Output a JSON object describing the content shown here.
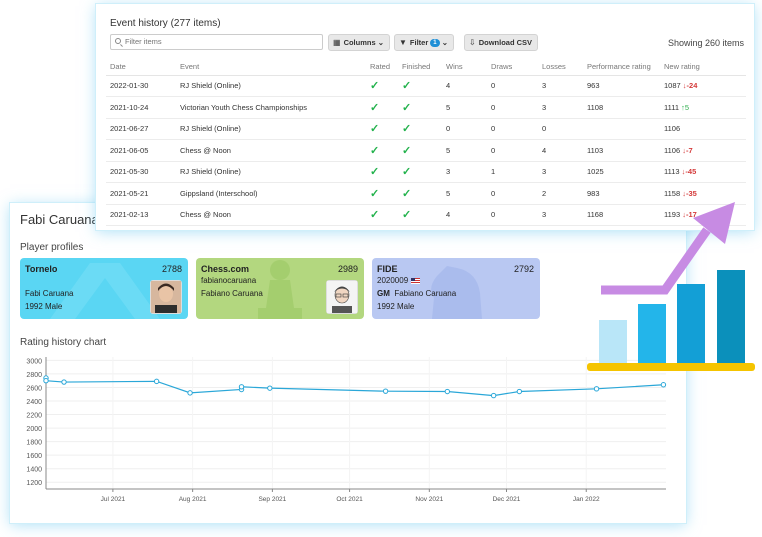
{
  "player_card": {
    "name": "Fabi Caruana",
    "profiles_title": "Player profiles",
    "chart_title": "Rating history chart",
    "profiles": [
      {
        "platform": "Tornelo",
        "rating": "2788",
        "line1": "Fabi Caruana",
        "line2": "1992 Male",
        "line3": ""
      },
      {
        "platform": "Chess.com",
        "rating": "2989",
        "line1": "fabianocaruana",
        "line2": "Fabiano Caruana",
        "line3": ""
      },
      {
        "platform": "FIDE",
        "rating": "2792",
        "line1": "2020009",
        "title": "GM",
        "line2": "Fabiano Caruana",
        "line3": "1992 Male"
      }
    ]
  },
  "events": {
    "title": "Event history (277 items)",
    "filter_placeholder": "Filter items",
    "columns_label": "Columns",
    "filter_label": "Filter",
    "filter_count": "1",
    "csv_label": "Download CSV",
    "showing": "Showing 260 items",
    "headers": [
      "Date",
      "Event",
      "Rated",
      "Finished",
      "Wins",
      "Draws",
      "Losses",
      "Performance rating",
      "New rating"
    ],
    "rows": [
      {
        "date": "2022-01-30",
        "event": "RJ Shield (Online)",
        "wins": "4",
        "draws": "0",
        "losses": "3",
        "perf": "963",
        "new": "1087",
        "change": "↓-24",
        "dir": "down"
      },
      {
        "date": "2021-10-24",
        "event": "Victorian Youth Chess Championships",
        "wins": "5",
        "draws": "0",
        "losses": "3",
        "perf": "1108",
        "new": "1111",
        "change": "↑5",
        "dir": "up"
      },
      {
        "date": "2021-06-27",
        "event": "RJ Shield (Online)",
        "wins": "0",
        "draws": "0",
        "losses": "0",
        "perf": "",
        "new": "1106",
        "change": "",
        "dir": ""
      },
      {
        "date": "2021-06-05",
        "event": "Chess @ Noon",
        "wins": "5",
        "draws": "0",
        "losses": "4",
        "perf": "1103",
        "new": "1106",
        "change": "↓-7",
        "dir": "down"
      },
      {
        "date": "2021-05-30",
        "event": "RJ Shield (Online)",
        "wins": "3",
        "draws": "1",
        "losses": "3",
        "perf": "1025",
        "new": "1113",
        "change": "↓-45",
        "dir": "down"
      },
      {
        "date": "2021-05-21",
        "event": "Gippsland (Interschool)",
        "wins": "5",
        "draws": "0",
        "losses": "2",
        "perf": "983",
        "new": "1158",
        "change": "↓-35",
        "dir": "down"
      },
      {
        "date": "2021-02-13",
        "event": "Chess @ Noon",
        "wins": "4",
        "draws": "0",
        "losses": "3",
        "perf": "1168",
        "new": "1193",
        "change": "↓-17",
        "dir": "down"
      }
    ]
  },
  "chart_data": {
    "type": "line",
    "title": "Rating history chart",
    "xlabel": "",
    "ylabel": "",
    "ylim": [
      1100,
      3050
    ],
    "yticks": [
      1200,
      1400,
      1600,
      1800,
      2000,
      2200,
      2400,
      2600,
      2800,
      3000
    ],
    "xticks": [
      "Jul 2021",
      "Aug 2021",
      "Sep 2021",
      "Oct 2021",
      "Nov 2021",
      "Dec 2021",
      "Jan 2022"
    ],
    "xrange": [
      "2021-06-05",
      "2022-02-01"
    ],
    "grid": true,
    "series": [
      {
        "color": "#2aa7d8",
        "points": [
          {
            "x": "2021-06-05",
            "y": 2740
          },
          {
            "x": "2021-06-05",
            "y": 2700
          },
          {
            "x": "2021-06-12",
            "y": 2680
          },
          {
            "x": "2021-07-18",
            "y": 2690
          },
          {
            "x": "2021-07-31",
            "y": 2520
          },
          {
            "x": "2021-08-20",
            "y": 2570
          },
          {
            "x": "2021-08-20",
            "y": 2610
          },
          {
            "x": "2021-08-31",
            "y": 2590
          },
          {
            "x": "2021-10-15",
            "y": 2545
          },
          {
            "x": "2021-11-08",
            "y": 2540
          },
          {
            "x": "2021-11-26",
            "y": 2480
          },
          {
            "x": "2021-12-06",
            "y": 2540
          },
          {
            "x": "2022-01-05",
            "y": 2580
          },
          {
            "x": "2022-01-31",
            "y": 2640
          }
        ]
      }
    ]
  },
  "colors": {
    "tornelo": "#5ad6f3",
    "chess_com": "#b3d77f",
    "fide": "#b9c8f2",
    "line": "#2aa7d8",
    "check": "#22b24c",
    "down": "#d43a3a",
    "up": "#2fae4e",
    "deco_arrow": "#c78be3",
    "deco_bars": [
      "#b9e6f8",
      "#23b5ea",
      "#139fd6",
      "#0b90bb"
    ],
    "deco_base": "#f5c400"
  },
  "decoration": {
    "icon": "growth-chart-icon"
  }
}
